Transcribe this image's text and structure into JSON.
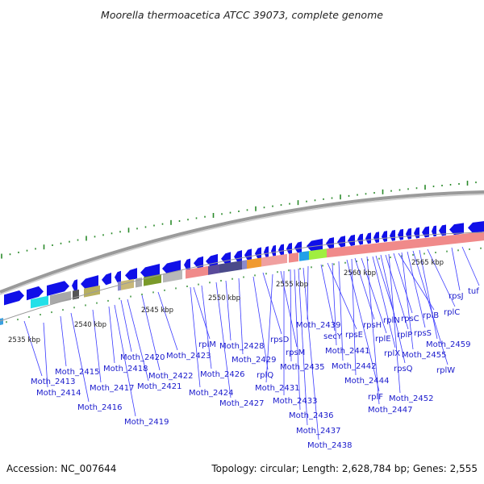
{
  "title": "Moorella thermoacetica ATCC 39073, complete genome",
  "footer": {
    "accession": "Accession: NC_007644",
    "summary": "Topology: circular; Length: 2,628,784 bp; Genes: 2,555"
  },
  "colors": {
    "cds_arrow": "#1010e8",
    "backbone": "#8c8c8c",
    "tick": "#2a8a2a",
    "label": "#1a1acc",
    "rrna_band": "#f08a8a"
  },
  "ticks": [
    {
      "label": "2535 kbp"
    },
    {
      "label": "2540 kbp"
    },
    {
      "label": "2545 kbp"
    },
    {
      "label": "2550 kbp"
    },
    {
      "label": "2555 kbp"
    },
    {
      "label": "2560 kbp"
    },
    {
      "label": "2565 kbp"
    }
  ],
  "genes": [
    {
      "label": "Moth_2413"
    },
    {
      "label": "Moth_2414"
    },
    {
      "label": "Moth_2415"
    },
    {
      "label": "Moth_2416"
    },
    {
      "label": "Moth_2417"
    },
    {
      "label": "Moth_2418"
    },
    {
      "label": "Moth_2419"
    },
    {
      "label": "Moth_2420"
    },
    {
      "label": "Moth_2421"
    },
    {
      "label": "Moth_2422"
    },
    {
      "label": "Moth_2423"
    },
    {
      "label": "rplM"
    },
    {
      "label": "Moth_2424"
    },
    {
      "label": "Moth_2426"
    },
    {
      "label": "Moth_2427"
    },
    {
      "label": "Moth_2428"
    },
    {
      "label": "Moth_2429"
    },
    {
      "label": "rplQ"
    },
    {
      "label": "rpsD"
    },
    {
      "label": "Moth_2431"
    },
    {
      "label": "rpsM"
    },
    {
      "label": "Moth_2433"
    },
    {
      "label": "Moth_2435"
    },
    {
      "label": "Moth_2436"
    },
    {
      "label": "Moth_2437"
    },
    {
      "label": "Moth_2438"
    },
    {
      "label": "Moth_2439"
    },
    {
      "label": "secY"
    },
    {
      "label": "rpsE"
    },
    {
      "label": "Moth_2441"
    },
    {
      "label": "Moth_2442"
    },
    {
      "label": "rplF"
    },
    {
      "label": "Moth_2444"
    },
    {
      "label": "rpsH"
    },
    {
      "label": "rplE"
    },
    {
      "label": "Moth_2447"
    },
    {
      "label": "rplX"
    },
    {
      "label": "rplN"
    },
    {
      "label": "rpsQ"
    },
    {
      "label": "rplP"
    },
    {
      "label": "Moth_2452"
    },
    {
      "label": "rpsC"
    },
    {
      "label": "rplB"
    },
    {
      "label": "Moth_2455"
    },
    {
      "label": "rpsS"
    },
    {
      "label": "rplW"
    },
    {
      "label": "Moth_2459"
    },
    {
      "label": "rplC"
    },
    {
      "label": "rpsJ"
    },
    {
      "label": "tuf"
    }
  ]
}
